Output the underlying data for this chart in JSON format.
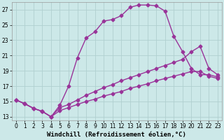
{
  "bg_color": "#cce8e8",
  "grid_color": "#b0d0d0",
  "line_color": "#993399",
  "xlim": [
    -0.5,
    23.5
  ],
  "ylim": [
    12.5,
    28.0
  ],
  "xticks": [
    0,
    1,
    2,
    3,
    4,
    5,
    6,
    7,
    8,
    9,
    10,
    11,
    12,
    13,
    14,
    15,
    16,
    17,
    18,
    19,
    20,
    21,
    22,
    23
  ],
  "yticks": [
    13,
    15,
    17,
    19,
    21,
    23,
    25,
    27
  ],
  "xlabel": "Windchill (Refroidissement éolien,°C)",
  "curve1_x": [
    0,
    1,
    2,
    3,
    4,
    5,
    6,
    7,
    8,
    9,
    10,
    11,
    12,
    13,
    14,
    15,
    16,
    17,
    18,
    19,
    20,
    21,
    22,
    23
  ],
  "curve1_y": [
    15.2,
    14.7,
    14.1,
    13.7,
    13.0,
    14.5,
    17.0,
    20.7,
    23.3,
    24.1,
    25.5,
    25.7,
    26.2,
    27.3,
    27.6,
    27.6,
    27.5,
    26.8,
    23.5,
    21.5,
    19.3,
    18.5,
    18.5,
    18.2
  ],
  "curve2_x": [
    0,
    1,
    2,
    3,
    4,
    5,
    6,
    7,
    8,
    9,
    10,
    11,
    12,
    13,
    14,
    15,
    16,
    17,
    18,
    19,
    20,
    21,
    22,
    23
  ],
  "curve2_y": [
    15.2,
    14.7,
    14.1,
    13.7,
    13.0,
    14.2,
    14.6,
    15.2,
    15.8,
    16.3,
    16.8,
    17.2,
    17.7,
    18.1,
    18.5,
    18.9,
    19.3,
    19.7,
    20.1,
    20.5,
    21.5,
    22.2,
    19.3,
    18.5
  ],
  "curve3_x": [
    0,
    1,
    2,
    3,
    4,
    5,
    6,
    7,
    8,
    9,
    10,
    11,
    12,
    13,
    14,
    15,
    16,
    17,
    18,
    19,
    20,
    21,
    22,
    23
  ],
  "curve3_y": [
    15.2,
    14.7,
    14.1,
    13.7,
    13.0,
    13.8,
    14.2,
    14.6,
    15.0,
    15.3,
    15.7,
    16.0,
    16.3,
    16.7,
    17.0,
    17.3,
    17.7,
    18.0,
    18.3,
    18.6,
    18.9,
    18.9,
    18.3,
    18.0
  ],
  "marker": "D",
  "marker_size": 2.5,
  "line_width": 1.0,
  "xlabel_fontsize": 6.5,
  "tick_fontsize": 5.5
}
